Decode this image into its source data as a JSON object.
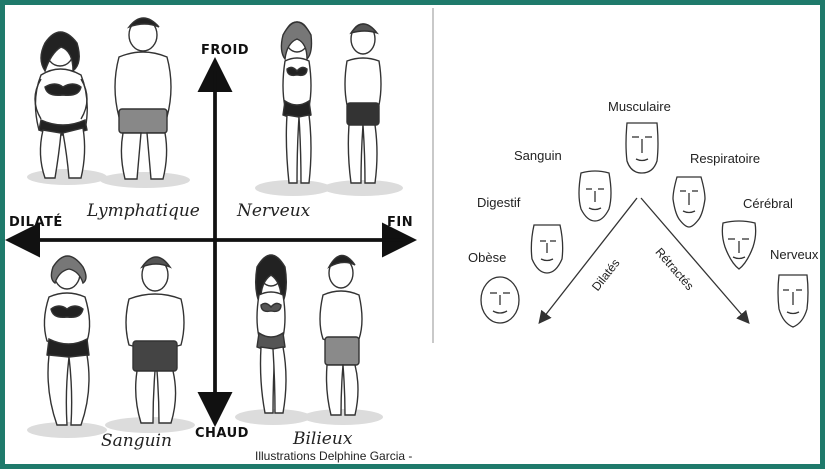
{
  "left_panel": {
    "axis": {
      "top": "FROID",
      "bottom": "CHAUD",
      "left": "DILATÉ",
      "right": "FIN"
    },
    "quadrants": {
      "top_left": "Lymphatique",
      "top_right": "Nerveux",
      "bottom_left": "Sanguin",
      "bottom_right": "Bilieux"
    },
    "credit": "Illustrations Delphine Garcia -"
  },
  "right_panel": {
    "faces": [
      {
        "id": "obese",
        "label": "Obèse"
      },
      {
        "id": "digestif",
        "label": "Digestif"
      },
      {
        "id": "sanguin",
        "label": "Sanguin"
      },
      {
        "id": "musculaire",
        "label": "Musculaire"
      },
      {
        "id": "respiratoire",
        "label": "Respiratoire"
      },
      {
        "id": "cerebral",
        "label": "Cérébral"
      },
      {
        "id": "nerveux",
        "label": "Nerveux"
      }
    ],
    "arrows": {
      "left": "Dilatés",
      "right": "Rétractés"
    }
  },
  "colors": {
    "frame": "#1f7a6b",
    "ink": "#111111",
    "shadow": "#d9d9d9"
  }
}
